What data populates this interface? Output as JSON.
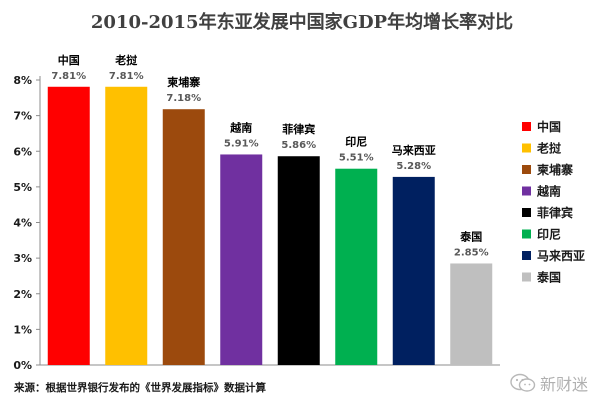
{
  "chart_data": {
    "type": "bar",
    "title": "2010-2015年东亚发展中国家GDP年均增长率对比",
    "categories": [
      "中国",
      "老挝",
      "柬埔寨",
      "越南",
      "菲律宾",
      "印尼",
      "马来西亚",
      "泰国"
    ],
    "bar_labels": [
      "中国",
      "老挝",
      "柬埔寨",
      "越南",
      "菲律宾",
      "印尼",
      "马来西亚",
      "泰国"
    ],
    "legend_labels": [
      "中国",
      "老挝",
      "柬埔寨",
      "越南",
      "菲律宾",
      "印尼",
      "马来西亚",
      "泰国"
    ],
    "values": [
      7.81,
      7.81,
      7.18,
      5.91,
      5.86,
      5.51,
      5.28,
      2.85
    ],
    "value_labels": [
      "7.81%",
      "7.81%",
      "7.18%",
      "5.91%",
      "5.86%",
      "5.51%",
      "5.28%",
      "2.85%"
    ],
    "colors": [
      "#ff0000",
      "#ffc000",
      "#9c4a0d",
      "#7030a0",
      "#000000",
      "#00b050",
      "#002060",
      "#bfbfbf"
    ],
    "y_ticks": [
      "0%",
      "1%",
      "2%",
      "3%",
      "4%",
      "5%",
      "6%",
      "7%",
      "8%"
    ],
    "ylim": [
      0,
      8
    ],
    "grid": false,
    "legend_position": "right"
  },
  "footer": {
    "source": "来源：根据世界银行发布的《世界发展指标》数据计算",
    "watermark": "新财迷",
    "watermark_icon": "wechat-icon"
  }
}
